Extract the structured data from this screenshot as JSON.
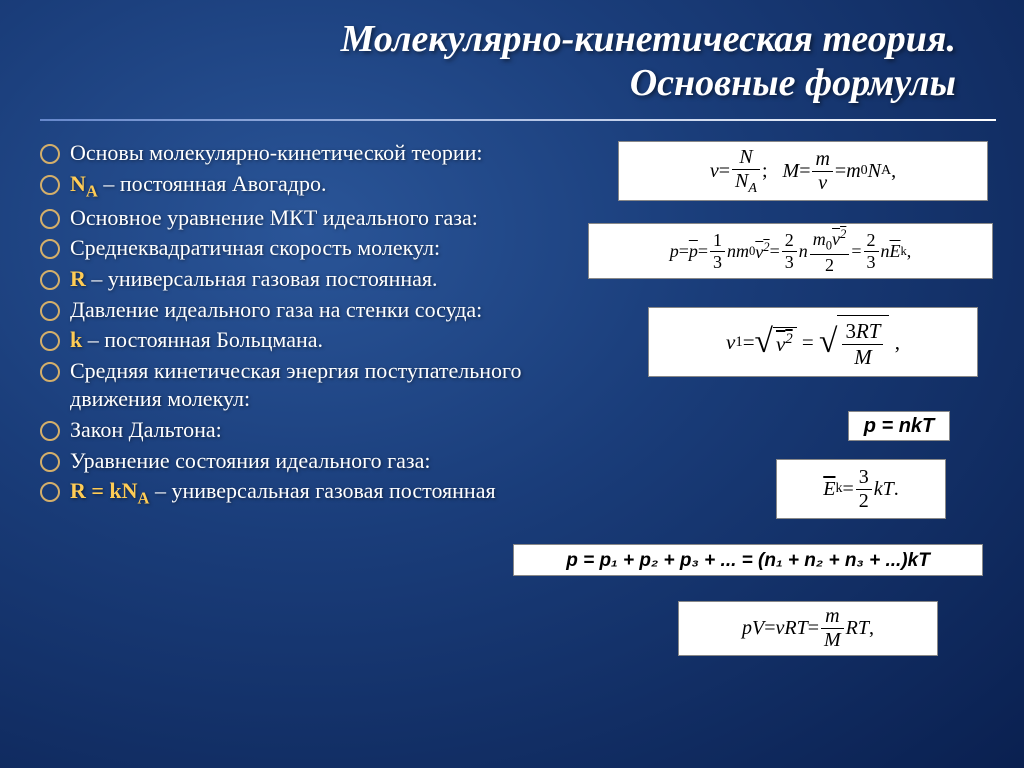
{
  "colors": {
    "bg_center": "#2a5598",
    "bg_mid": "#1a3d7a",
    "bg_edge": "#0a2050",
    "title_color": "#ffffff",
    "text_color": "#ffffff",
    "highlight_color": "#ffcc55",
    "bullet_border": "#d4af6a",
    "formula_bg": "#ffffff",
    "formula_text": "#000000"
  },
  "typography": {
    "title_fontsize": 38,
    "body_fontsize": 22,
    "formula_fontsize": 20,
    "font_family_title": "Georgia, serif, italic",
    "font_family_body": "Georgia, serif",
    "font_family_formula": "Times New Roman, serif"
  },
  "title": {
    "line1": "Молекулярно-кинетическая теория.",
    "line2": "Основные формулы"
  },
  "bullets": [
    {
      "text": "Основы молекулярно-кинетической теории:",
      "highlight": ""
    },
    {
      "prefix": " ",
      "highlight": "N",
      "highlight_sub": "A",
      "suffix": " – постоянная Авогадро."
    },
    {
      "text": "Основное уравнение МКТ идеального газа:"
    },
    {
      "text": "Среднеквадратичная скорость молекул:"
    },
    {
      "prefix": "",
      "highlight": "R",
      "suffix": " – универсальная газовая постоянная."
    },
    {
      "text": "Давление идеального газа на стенки сосуда:"
    },
    {
      "prefix": "",
      "highlight": "k",
      "suffix": " – постоянная Больцмана."
    },
    {
      "text": "Средняя кинетическая энергия поступательного движения молекул:"
    },
    {
      "text": "Закон Дальтона:"
    },
    {
      "text": "Уравнение состояния идеального газа:"
    },
    {
      "prefix": "",
      "highlight": "R = kN",
      "highlight_sub": "A",
      "suffix": " – универсальная газовая постоянная"
    }
  ],
  "formulas": {
    "f1_parts": {
      "nu": "ν",
      "eq": " = ",
      "N": "N",
      "NA": "N",
      "A": "A",
      "Av": "A",
      "M": "M",
      "m": "m",
      "v": "v",
      "m0": "m",
      "zero": "0"
    },
    "f4_text": "p = nkT",
    "f6_text": "p = p₁ + p₂ + p₃ + ... = (n₁ + n₂ + n₃ + ...)kT"
  }
}
